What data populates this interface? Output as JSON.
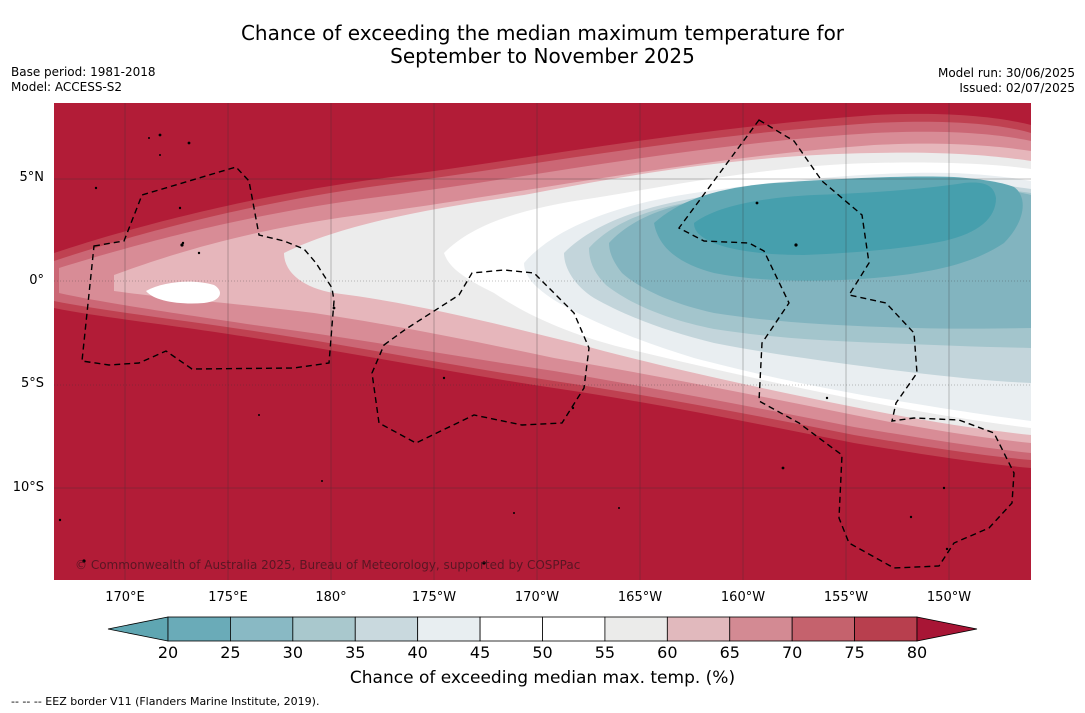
{
  "title": {
    "line1": "Chance of exceeding the median maximum temperature for",
    "line2": "September to November 2025"
  },
  "meta": {
    "base_period": "Base period: 1981-2018",
    "model": "Model: ACCESS-S2",
    "model_run": "Model run: 30/06/2025",
    "issued": "Issued: 02/07/2025"
  },
  "map": {
    "lat_labels": [
      "5°N",
      "0°",
      "5°S",
      "10°S"
    ],
    "lon_labels": [
      "170°E",
      "175°E",
      "180°",
      "175°W",
      "170°W",
      "165°W",
      "160°W",
      "155°W",
      "150°W"
    ],
    "copyright": "© Commonwealth of Australia 2025, Bureau of Meteorology, supported by COSPPac",
    "colors": {
      "hot": "#b21c37",
      "warm1": "#bf4151",
      "warm2": "#cb6775",
      "warm3": "#d88c96",
      "warm4": "#e6b6bb",
      "neutral": "#ececec",
      "white": "#ffffff",
      "cool1": "#e9eef1",
      "cool2": "#c3d5db",
      "cool3": "#a3c5cc",
      "cool4": "#82b4bf",
      "cool5": "#61a8b4",
      "cool6": "#469fad"
    }
  },
  "colorbar": {
    "labels": [
      "20",
      "25",
      "30",
      "35",
      "40",
      "45",
      "50",
      "55",
      "60",
      "65",
      "70",
      "75",
      "80"
    ],
    "colors": [
      "#5fa6b2",
      "#6aabb8",
      "#89b9c4",
      "#a9c8cd",
      "#c9d9de",
      "#e8eef1",
      "#ffffff",
      "#ffffff",
      "#ebebea",
      "#e1b9bd",
      "#d38a93",
      "#c5626d",
      "#b83f4e",
      "#a81535"
    ],
    "title": "Chance of exceeding median max. temp. (%)"
  },
  "legend": {
    "eez": "--  --  -- EEZ border V11 (Flanders Marine Institute, 2019)."
  }
}
